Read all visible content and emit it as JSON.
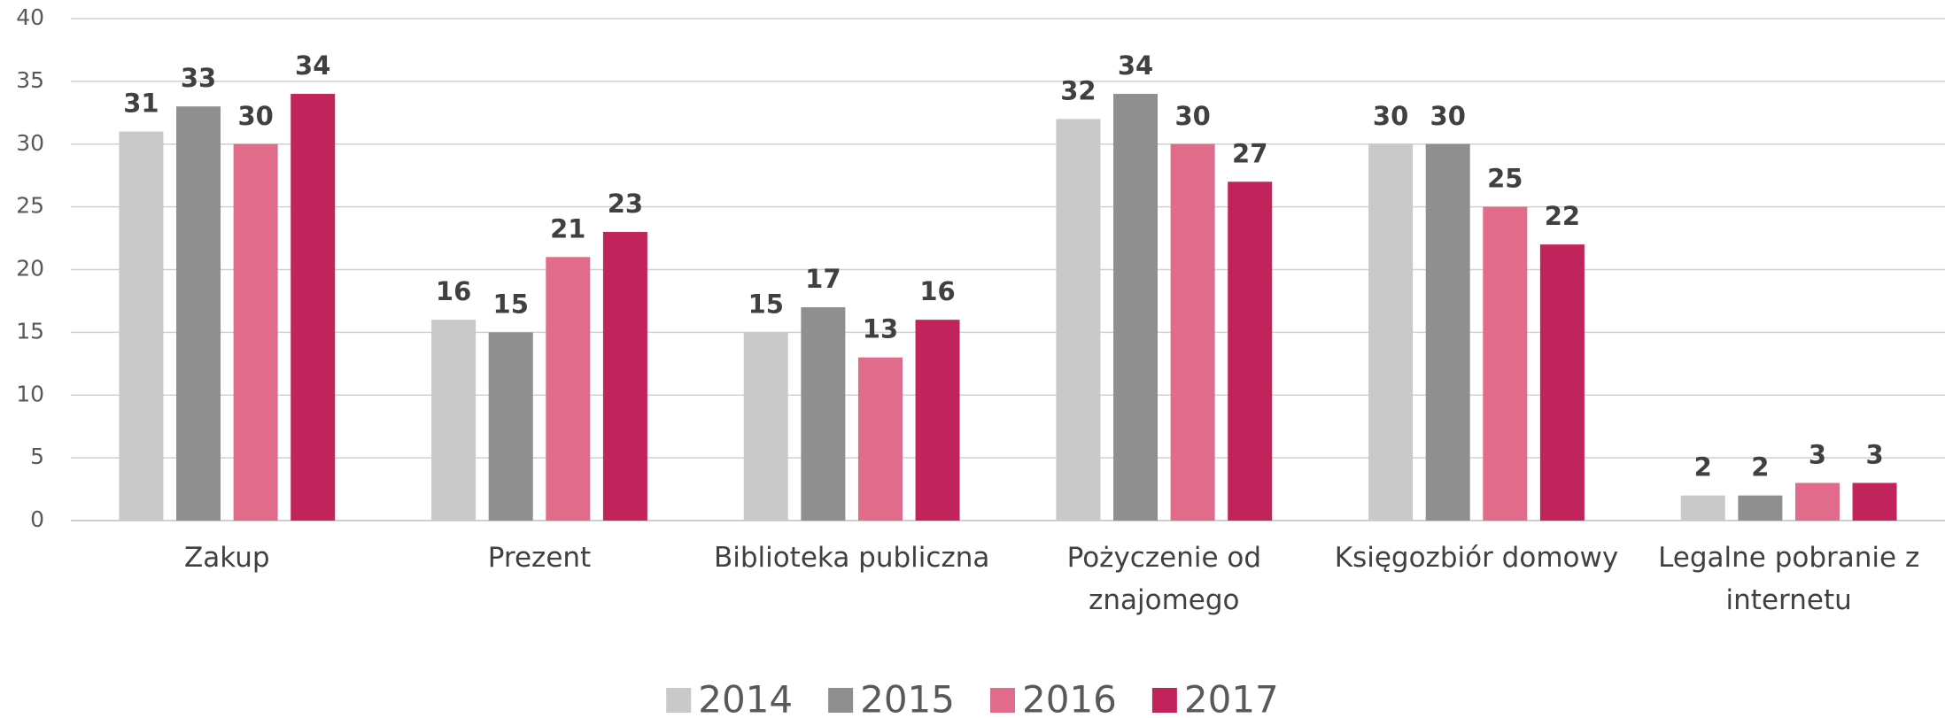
{
  "chart_data": {
    "type": "bar",
    "categories": [
      "Zakup",
      "Prezent",
      "Biblioteka publiczna",
      "Pożyczenie od znajomego",
      "Księgozbiór domowy",
      "Legalne pobranie z internetu"
    ],
    "series": [
      {
        "name": "2014",
        "color": "#c9c9c9",
        "values": [
          31,
          16,
          15,
          32,
          30,
          2
        ]
      },
      {
        "name": "2015",
        "color": "#8f8f8f",
        "values": [
          33,
          15,
          17,
          34,
          30,
          2
        ]
      },
      {
        "name": "2016",
        "color": "#e06b8b",
        "values": [
          30,
          21,
          13,
          30,
          25,
          3
        ]
      },
      {
        "name": "2017",
        "color": "#c0245a",
        "values": [
          34,
          23,
          16,
          27,
          22,
          3
        ]
      }
    ],
    "ylim": [
      0,
      40
    ],
    "yticks": [
      0,
      5,
      10,
      15,
      20,
      25,
      30,
      35,
      40
    ],
    "grid": true,
    "legend": "bottom"
  }
}
